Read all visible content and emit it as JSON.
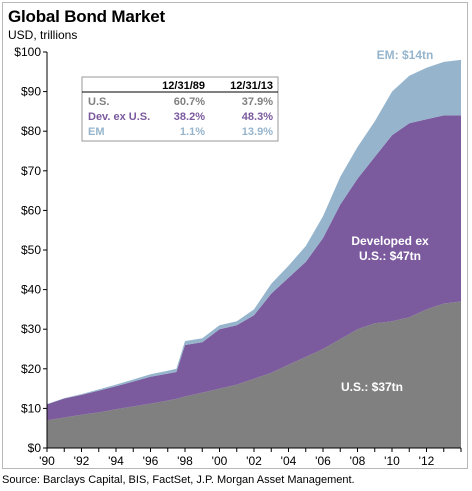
{
  "title": "Global Bond Market",
  "subtitle": "USD, trillions",
  "source": "Source: Barclays Capital, BIS, FactSet, J.P. Morgan Asset Management.",
  "colors": {
    "us": "#808080",
    "dev": "#7b5a9e",
    "em": "#96b5cd"
  },
  "chart_data": {
    "type": "area",
    "stacked": true,
    "x": [
      1990,
      1991,
      1992,
      1993,
      1994,
      1995,
      1996,
      1997,
      1997.5,
      1998,
      1999,
      2000,
      2001,
      2002,
      2003,
      2004,
      2005,
      2006,
      2007,
      2008,
      2009,
      2010,
      2011,
      2012,
      2013,
      2014
    ],
    "x_tick_labels": [
      "'90",
      "'92",
      "'94",
      "'96",
      "'98",
      "'00",
      "'02",
      "'04",
      "'06",
      "'08",
      "'10",
      "'12"
    ],
    "x_tick_values": [
      1990,
      1992,
      1994,
      1996,
      1998,
      2000,
      2002,
      2004,
      2006,
      2008,
      2010,
      2012
    ],
    "y_tick_labels": [
      "$0",
      "$10",
      "$20",
      "$30",
      "$40",
      "$50",
      "$60",
      "$70",
      "$80",
      "$90",
      "$100"
    ],
    "ylim": [
      0,
      100
    ],
    "xlim": [
      1990,
      2014
    ],
    "grid": false,
    "series": [
      {
        "name": "U.S.",
        "label": "U.S.: $37tn",
        "color": "#808080",
        "values": [
          7.0,
          7.7,
          8.4,
          9.0,
          9.8,
          10.5,
          11.2,
          12.0,
          12.4,
          13.0,
          14.0,
          15.0,
          16.0,
          17.5,
          19.0,
          21.0,
          23.0,
          25.0,
          27.5,
          30.0,
          31.5,
          32.0,
          33.0,
          35.0,
          36.5,
          37.0
        ]
      },
      {
        "name": "Dev. ex U.S.",
        "label": "Developed ex U.S.: $47tn",
        "color": "#7b5a9e",
        "values": [
          4.0,
          4.8,
          5.0,
          5.5,
          5.8,
          6.3,
          6.8,
          6.8,
          6.8,
          13.0,
          12.7,
          15.0,
          15.0,
          16.0,
          20.0,
          22.0,
          24.0,
          28.0,
          34.0,
          38.0,
          42.0,
          47.0,
          49.0,
          48.0,
          47.5,
          47.0
        ]
      },
      {
        "name": "EM",
        "label": "EM: $14tn",
        "color": "#96b5cd",
        "values": [
          0.1,
          0.1,
          0.2,
          0.3,
          0.4,
          0.5,
          0.6,
          0.7,
          0.8,
          1.0,
          1.0,
          1.0,
          1.0,
          1.5,
          2.5,
          3.0,
          4.0,
          5.5,
          7.0,
          8.0,
          9.0,
          11.0,
          12.0,
          13.0,
          13.5,
          14.0
        ]
      }
    ],
    "table": {
      "columns": [
        "",
        "12/31/89",
        "12/31/13"
      ],
      "rows": [
        {
          "label": "U.S.",
          "v1": "60.7%",
          "v2": "37.9%"
        },
        {
          "label": "Dev. ex U.S.",
          "v1": "38.2%",
          "v2": "48.3%"
        },
        {
          "label": "EM",
          "v1": "1.1%",
          "v2": "13.9%"
        }
      ]
    }
  },
  "labels": {
    "em": "EM: $14tn",
    "dev_line1": "Developed ex",
    "dev_line2": "U.S.: $47tn",
    "us": "U.S.: $37tn"
  }
}
